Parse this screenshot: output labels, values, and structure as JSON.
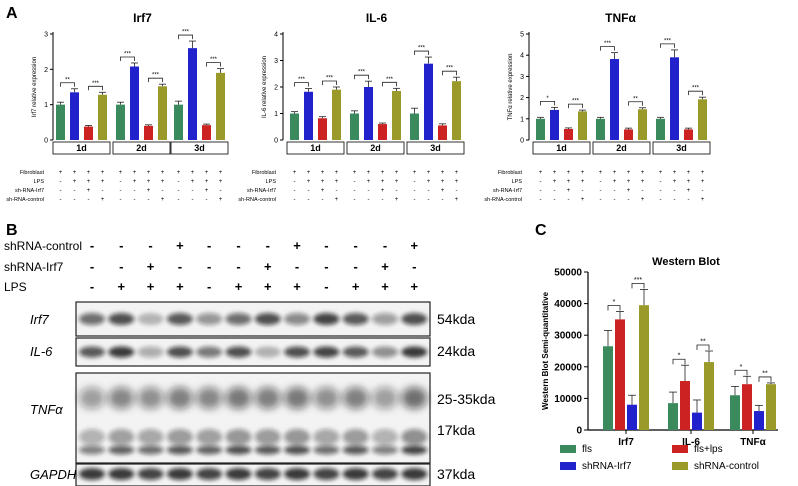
{
  "panels": {
    "A": {
      "letter": "A"
    },
    "B": {
      "letter": "B"
    },
    "C": {
      "letter": "C"
    }
  },
  "qpcr_rows": {
    "labels": [
      "Fibroblast",
      "LPS",
      "sh-RNA-Irf7",
      "sh-RNA-control"
    ],
    "signs": [
      [
        "+",
        "+",
        "+",
        "+"
      ],
      [
        "-",
        "+",
        "+",
        "+"
      ],
      [
        "-",
        "-",
        "+",
        "-"
      ],
      [
        "-",
        "-",
        "-",
        "+"
      ]
    ]
  },
  "chart_data": [
    {
      "type": "bar",
      "title": "Irf7",
      "ylabel": "Irf7 relative expression",
      "ylim": [
        0,
        3
      ],
      "yticks": [
        "0",
        "1",
        "2",
        "3"
      ],
      "groups": [
        "1d",
        "2d",
        "3d"
      ],
      "colors": [
        "#3a8a5e",
        "#2222cc",
        "#cc2222",
        "#9a9a2a"
      ],
      "values": [
        [
          1.0,
          1.35,
          0.38,
          1.28
        ],
        [
          1.0,
          2.08,
          0.4,
          1.52
        ],
        [
          1.0,
          2.6,
          0.42,
          1.9
        ]
      ],
      "errors": [
        [
          0.07,
          0.1,
          0.03,
          0.07
        ],
        [
          0.07,
          0.1,
          0.03,
          0.06
        ],
        [
          0.1,
          0.2,
          0.03,
          0.12
        ]
      ],
      "sig": [
        [
          "**",
          "***"
        ],
        [
          "***",
          "***"
        ],
        [
          "***",
          "***"
        ]
      ]
    },
    {
      "type": "bar",
      "title": "IL-6",
      "ylabel": "IL-6 relative expression",
      "ylim": [
        0,
        4
      ],
      "yticks": [
        "0",
        "1",
        "2",
        "3",
        "4"
      ],
      "groups": [
        "1d",
        "2d",
        "3d"
      ],
      "colors": [
        "#3a8a5e",
        "#2222cc",
        "#cc2222",
        "#9a9a2a"
      ],
      "values": [
        [
          1.0,
          1.82,
          0.82,
          1.9
        ],
        [
          1.0,
          2.0,
          0.6,
          1.85
        ],
        [
          1.0,
          2.88,
          0.55,
          2.22
        ]
      ],
      "errors": [
        [
          0.07,
          0.12,
          0.06,
          0.1
        ],
        [
          0.1,
          0.22,
          0.04,
          0.1
        ],
        [
          0.2,
          0.25,
          0.06,
          0.15
        ]
      ],
      "sig": [
        [
          "***",
          "***"
        ],
        [
          "***",
          "***"
        ],
        [
          "***",
          "***"
        ]
      ]
    },
    {
      "type": "bar",
      "title": "TNFα",
      "ylabel": "TNFα relative expression",
      "ylim": [
        0,
        5
      ],
      "yticks": [
        "0",
        "1",
        "2",
        "3",
        "4",
        "5"
      ],
      "groups": [
        "1d",
        "2d",
        "3d"
      ],
      "colors": [
        "#3a8a5e",
        "#2222cc",
        "#cc2222",
        "#9a9a2a"
      ],
      "values": [
        [
          1.0,
          1.42,
          0.52,
          1.35
        ],
        [
          1.0,
          3.82,
          0.5,
          1.45
        ],
        [
          1.0,
          3.9,
          0.5,
          1.92
        ]
      ],
      "errors": [
        [
          0.07,
          0.12,
          0.05,
          0.06
        ],
        [
          0.07,
          0.3,
          0.06,
          0.07
        ],
        [
          0.07,
          0.35,
          0.06,
          0.1
        ]
      ],
      "sig": [
        [
          "*",
          "***"
        ],
        [
          "***",
          "**"
        ],
        [
          "***",
          "***"
        ]
      ]
    },
    {
      "type": "bar",
      "title": "Western Blot",
      "ylabel": "Western Blot Semi-quantitative",
      "ylim": [
        0,
        50000
      ],
      "yticks": [
        "0",
        "10000",
        "20000",
        "30000",
        "40000",
        "50000"
      ],
      "categories": [
        "Irf7",
        "IL-6",
        "TNFα"
      ],
      "series": [
        {
          "name": "fls",
          "color": "#3a8a5e",
          "values": [
            26500,
            8500,
            11000
          ],
          "errors": [
            5000,
            3500,
            2800
          ]
        },
        {
          "name": "fls+lps",
          "color": "#cc2222",
          "values": [
            35000,
            15500,
            14500
          ],
          "errors": [
            2500,
            5000,
            2500
          ]
        },
        {
          "name": "shRNA-Irf7",
          "color": "#2222cc",
          "values": [
            8000,
            5500,
            6000
          ],
          "errors": [
            3000,
            4000,
            1800
          ]
        },
        {
          "name": "shRNA-control",
          "color": "#9a9a2a",
          "values": [
            39500,
            21500,
            14500
          ],
          "errors": [
            5000,
            3500,
            400
          ]
        }
      ],
      "sig": [
        [
          "*",
          "***"
        ],
        [
          "*",
          "**"
        ],
        [
          "*",
          "**"
        ]
      ]
    }
  ],
  "western": {
    "row_labels": [
      "shRNA-control",
      "shRNA-Irf7",
      "LPS"
    ],
    "rows": [
      [
        "-",
        "-",
        "-",
        "+",
        "-",
        "-",
        "-",
        "+",
        "-",
        "-",
        "-",
        "+"
      ],
      [
        "-",
        "-",
        "+",
        "-",
        "-",
        "-",
        "+",
        "-",
        "-",
        "-",
        "+",
        "-"
      ],
      [
        "-",
        "+",
        "+",
        "+",
        "-",
        "+",
        "+",
        "+",
        "-",
        "+",
        "+",
        "+"
      ]
    ],
    "blots": [
      {
        "label": "Irf7",
        "size": "54kda"
      },
      {
        "label": "IL-6",
        "size": "24kda"
      },
      {
        "label": "TNFα",
        "size": "25-35kda",
        "size2": "17kda"
      },
      {
        "label": "GAPDH",
        "size": "37kda"
      }
    ]
  }
}
